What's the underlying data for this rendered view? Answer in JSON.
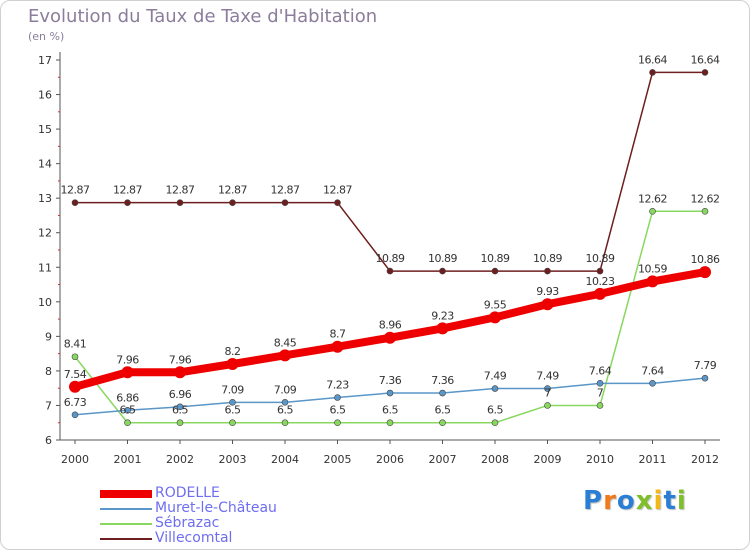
{
  "title": "Evolution du Taux de Taxe d'Habitation",
  "subtitle": "(en %)",
  "logo": {
    "text": "Proxiti",
    "letter_colors": [
      "#2a7fd4",
      "#f07a1a",
      "#2a7fd4",
      "#7fbf2a",
      "#f0b81a",
      "#2a7fd4",
      "#7fbf2a"
    ]
  },
  "chart_data": {
    "type": "line",
    "title": "Evolution du Taux de Taxe d'Habitation",
    "ylabel": "(en %)",
    "xlabel": "",
    "x": [
      "2000",
      "2001",
      "2002",
      "2003",
      "2004",
      "2005",
      "2006",
      "2007",
      "2008",
      "2009",
      "2010",
      "2011",
      "2012"
    ],
    "ylim": [
      6,
      17
    ],
    "yticks": [
      "6",
      "7",
      "8",
      "9",
      "10",
      "11",
      "12",
      "13",
      "14",
      "15",
      "16",
      "17"
    ],
    "grid": false,
    "legend": "bottom-left",
    "series": [
      {
        "name": "RODELLE",
        "color": "#ee0000",
        "thick": true,
        "values": [
          7.54,
          7.96,
          7.96,
          8.2,
          8.45,
          8.7,
          8.96,
          9.23,
          9.55,
          9.93,
          10.23,
          10.59,
          10.86
        ],
        "labels": [
          "7.54",
          "7.96",
          "7.96",
          "8.2",
          "8.45",
          "8.7",
          "8.96",
          "9.23",
          "9.55",
          "9.93",
          "10.23",
          "10.59",
          "10.86"
        ]
      },
      {
        "name": "Muret-le-Château",
        "color": "#5a96c8",
        "thick": false,
        "values": [
          6.73,
          6.86,
          6.96,
          7.09,
          7.09,
          7.23,
          7.36,
          7.36,
          7.49,
          7.49,
          7.64,
          7.64,
          7.79
        ],
        "labels": [
          "6.73",
          "6.86",
          "6.96",
          "7.09",
          "7.09",
          "7.23",
          "7.36",
          "7.36",
          "7.49",
          "7.49",
          "7.64",
          "7.64",
          "7.79"
        ]
      },
      {
        "name": "Sébrazac",
        "color": "#88d860",
        "thick": false,
        "values": [
          8.41,
          6.5,
          6.5,
          6.5,
          6.5,
          6.5,
          6.5,
          6.5,
          6.5,
          7,
          7,
          12.62,
          12.62
        ],
        "labels": [
          "8.41",
          "6.5",
          "6.5",
          "6.5",
          "6.5",
          "6.5",
          "6.5",
          "6.5",
          "6.5",
          "7",
          "7",
          "12.62",
          "12.62"
        ]
      },
      {
        "name": "Villecomtal",
        "color": "#6e1e1e",
        "thick": false,
        "values": [
          12.87,
          12.87,
          12.87,
          12.87,
          12.87,
          12.87,
          10.89,
          10.89,
          10.89,
          10.89,
          10.89,
          16.64,
          16.64
        ],
        "labels": [
          "12.87",
          "12.87",
          "12.87",
          "12.87",
          "12.87",
          "12.87",
          "10.89",
          "10.89",
          "10.89",
          "10.89",
          "10.89",
          "16.64",
          "16.64"
        ]
      }
    ]
  }
}
